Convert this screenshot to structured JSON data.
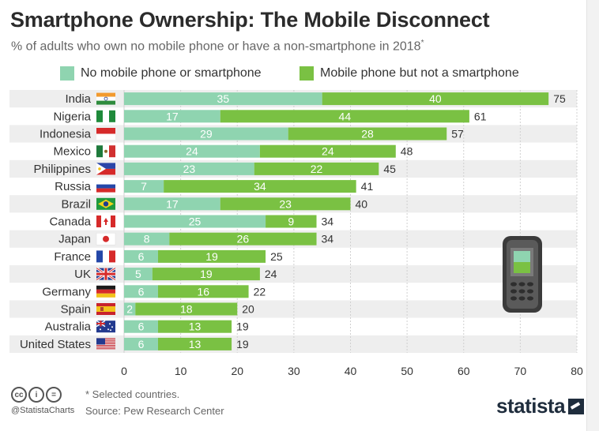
{
  "header": {
    "title": "Smartphone Ownership: The Mobile Disconnect",
    "subtitle": "% of adults who own no mobile phone or have a non-smartphone in 2018",
    "subtitle_mark": "*"
  },
  "legend": {
    "items": [
      {
        "label": "No mobile phone or smartphone",
        "color": "#8fd4b0"
      },
      {
        "label": "Mobile phone but not a smartphone",
        "color": "#7ac143"
      }
    ]
  },
  "footer": {
    "note": "* Selected countries.",
    "source": "Source: Pew Research Center",
    "handle": "@StatistaCharts",
    "logo": "statista",
    "license_icons": [
      "cc-icon",
      "by-icon",
      "nd-icon"
    ]
  },
  "decoration": {
    "icon": "mobile-phone-icon"
  },
  "chart_data": {
    "type": "bar",
    "orientation": "horizontal",
    "stacked": true,
    "categories": [
      "India",
      "Nigeria",
      "Indonesia",
      "Mexico",
      "Philippines",
      "Russia",
      "Brazil",
      "Canada",
      "Japan",
      "France",
      "UK",
      "Germany",
      "Spain",
      "Australia",
      "United States"
    ],
    "flags": [
      "india-flag-icon",
      "nigeria-flag-icon",
      "indonesia-flag-icon",
      "mexico-flag-icon",
      "philippines-flag-icon",
      "russia-flag-icon",
      "brazil-flag-icon",
      "canada-flag-icon",
      "japan-flag-icon",
      "france-flag-icon",
      "uk-flag-icon",
      "germany-flag-icon",
      "spain-flag-icon",
      "australia-flag-icon",
      "us-flag-icon"
    ],
    "series": [
      {
        "name": "No mobile phone or smartphone",
        "values": [
          35,
          17,
          29,
          24,
          23,
          7,
          17,
          25,
          8,
          6,
          5,
          6,
          2,
          6,
          6
        ],
        "color": "#8fd4b0"
      },
      {
        "name": "Mobile phone but not a smartphone",
        "values": [
          40,
          44,
          28,
          24,
          22,
          34,
          23,
          9,
          26,
          19,
          19,
          16,
          18,
          13,
          13
        ],
        "color": "#7ac143"
      }
    ],
    "totals": [
      75,
      61,
      57,
      48,
      45,
      41,
      40,
      34,
      34,
      25,
      24,
      22,
      20,
      19,
      19
    ],
    "xlim": [
      0,
      80
    ],
    "xticks": [
      0,
      10,
      20,
      30,
      40,
      50,
      60,
      70,
      80
    ],
    "grid": true,
    "legend_position": "top"
  }
}
